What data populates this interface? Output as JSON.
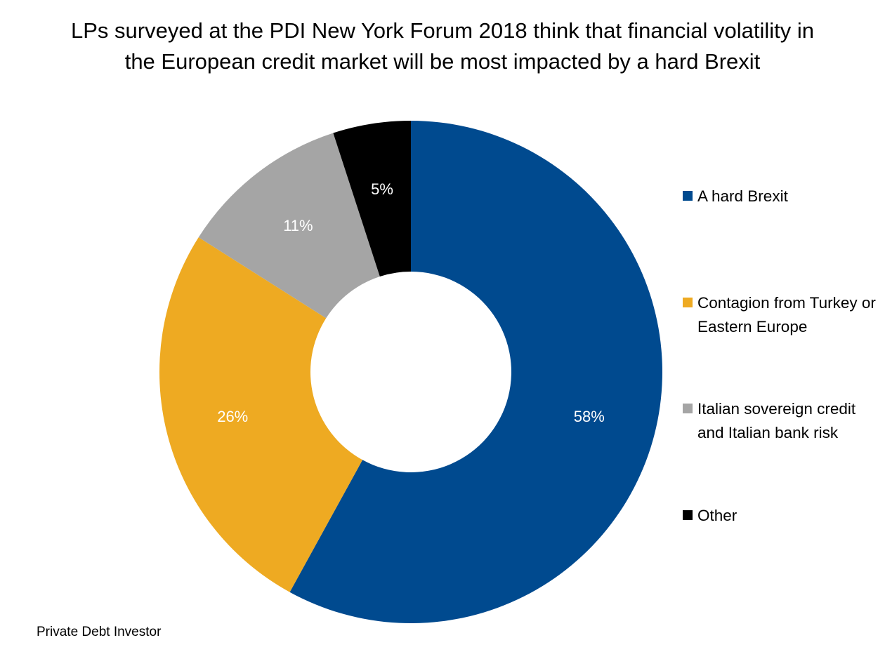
{
  "chart_data": {
    "type": "pie",
    "variant": "donut",
    "title": "LPs surveyed at the PDI New York Forum 2018 think that financial volatility in the European credit market will be most impacted by a hard Brexit",
    "categories": [
      "A hard Brexit",
      "Contagion from Turkey or Eastern Europe",
      "Italian sovereign credit and Italian bank risk",
      "Other"
    ],
    "values": [
      58,
      26,
      11,
      5
    ],
    "data_labels": [
      "58%",
      "26%",
      "11%",
      "5%"
    ],
    "colors": [
      "#004a8f",
      "#eeaa22",
      "#a5a5a5",
      "#000000"
    ],
    "label_color": "#ffffff",
    "legend_position": "right",
    "start": "top",
    "direction": "clockwise"
  },
  "source": "Private Debt Investor"
}
